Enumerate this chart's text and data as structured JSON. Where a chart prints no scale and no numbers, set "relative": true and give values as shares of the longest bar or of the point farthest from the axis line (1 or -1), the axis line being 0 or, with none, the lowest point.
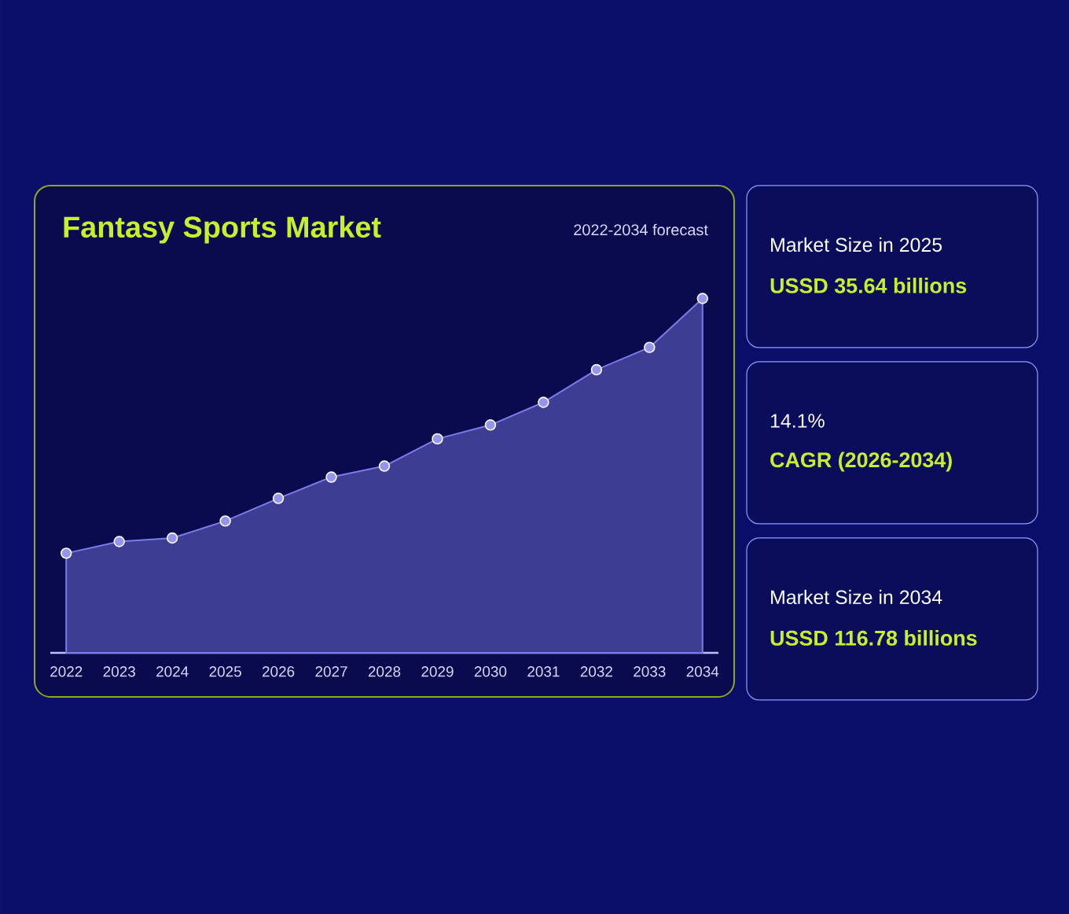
{
  "chart_data": {
    "type": "area",
    "title": "Fantasy Sports Market",
    "subtitle": "2022-2034 forecast",
    "categories": [
      "2022",
      "2023",
      "2024",
      "2025",
      "2026",
      "2027",
      "2028",
      "2029",
      "2030",
      "2031",
      "2032",
      "2033",
      "2034"
    ],
    "values": [
      0.281,
      0.314,
      0.324,
      0.372,
      0.436,
      0.496,
      0.527,
      0.604,
      0.643,
      0.707,
      0.799,
      0.862,
      1
    ],
    "relative": true,
    "color": "#7b7bea",
    "marker": "circle",
    "annotations": [
      "Market Size in 2025",
      "USSD 35.64 billions",
      "14.1%",
      "CAGR (2026-2034)",
      "Market Size in 2034",
      "USSD 116.78 billions"
    ]
  }
}
